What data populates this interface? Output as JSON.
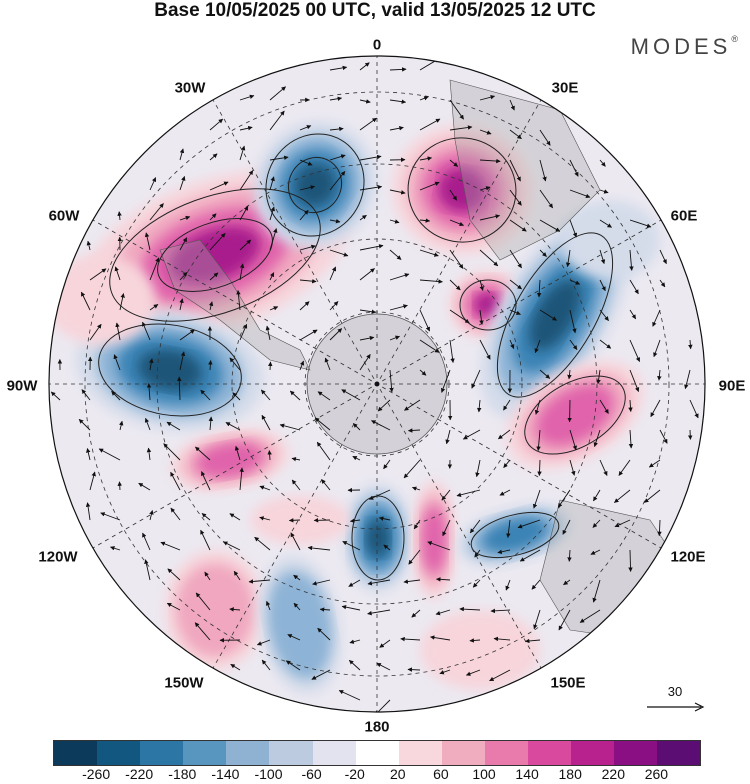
{
  "title": "Base 10/05/2025 00 UTC, valid 13/05/2025 12 UTC",
  "brand": "MODES",
  "brand_mark": "®",
  "longitude_labels": {
    "top": "0",
    "bottom": "180",
    "lon30w": "30W",
    "lon30e": "30E",
    "lon60w": "60W",
    "lon60e": "60E",
    "lon90w": "90W",
    "lon90e": "90E",
    "lon120w": "120W",
    "lon120e": "120E",
    "lon150w": "150W",
    "lon150e": "150E"
  },
  "reference_vector": {
    "label": "30"
  },
  "colorbar": {
    "colors": [
      "#0b3a5a",
      "#11577f",
      "#2b76a4",
      "#5896c0",
      "#8fb2d2",
      "#bccbe0",
      "#e3e3ef",
      "#ffffff",
      "#f8d8dc",
      "#f1adc0",
      "#e97aac",
      "#d94a9f",
      "#b7228f",
      "#8a0f82",
      "#5b0d74"
    ],
    "tick_labels": [
      "-260",
      "-220",
      "-180",
      "-140",
      "-100",
      "-60",
      "-20",
      "20",
      "60",
      "100",
      "140",
      "180",
      "220",
      "260"
    ]
  },
  "anomaly_colors": {
    "neg_dark": "#1c5478",
    "neg_mid": "#3b83b5",
    "neg_light": "#8db3d6",
    "neg_faint": "#d4dcea",
    "pos_faint": "#f7d5db",
    "pos_light": "#f0a7bf",
    "pos_mid": "#e064ab",
    "pos_dark": "#a91a8d"
  }
}
